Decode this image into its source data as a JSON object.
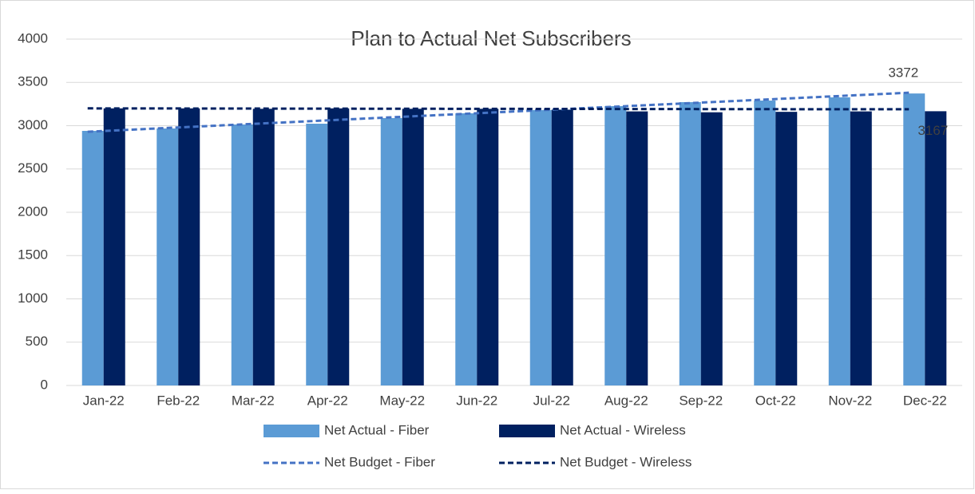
{
  "chart_data": {
    "type": "bar",
    "title": "Plan to Actual Net Subscribers",
    "categories": [
      "Jan-22",
      "Feb-22",
      "Mar-22",
      "Apr-22",
      "May-22",
      "Jun-22",
      "Jul-22",
      "Aug-22",
      "Sep-22",
      "Oct-22",
      "Nov-22",
      "Dec-22"
    ],
    "series": [
      {
        "name": "Net Actual - Fiber",
        "type": "bar",
        "color": "#5b9bd5",
        "values": [
          2940,
          2968,
          3014,
          3023,
          3088,
          3143,
          3180,
          3226,
          3272,
          3290,
          3327,
          3372
        ],
        "labeled": [
          11
        ]
      },
      {
        "name": "Net Actual - Wireless",
        "type": "bar",
        "color": "#002060",
        "values": [
          3200,
          3200,
          3195,
          3200,
          3195,
          3195,
          3185,
          3165,
          3155,
          3160,
          3165,
          3167
        ],
        "labeled": [
          11
        ]
      },
      {
        "name": "Net Budget - Fiber",
        "type": "line",
        "dashed": true,
        "color": "#4472c4",
        "values": [
          2930,
          2971,
          3012,
          3053,
          3094,
          3135,
          3176,
          3217,
          3258,
          3299,
          3340,
          3381
        ]
      },
      {
        "name": "Net Budget - Wireless",
        "type": "line",
        "dashed": true,
        "color": "#002060",
        "values": [
          3200,
          3199,
          3198,
          3197,
          3196,
          3195,
          3194,
          3193,
          3192,
          3191,
          3190,
          3190
        ]
      }
    ],
    "ylim": [
      0,
      4000
    ],
    "yticks": [
      0,
      500,
      1000,
      1500,
      2000,
      2500,
      3000,
      3500,
      4000
    ],
    "grid": true,
    "legend": "bottom"
  }
}
